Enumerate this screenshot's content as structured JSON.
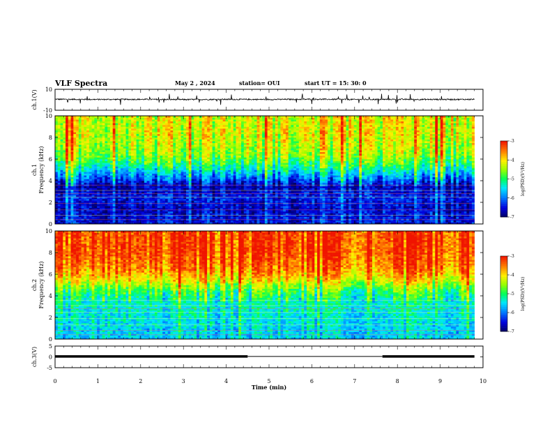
{
  "header": {
    "title": "VLF Spectra",
    "date": "May 2 , 2024",
    "station": "station= OUI",
    "start": "start UT = 15: 30: 0"
  },
  "colors": {
    "spectrogram_scale": [
      "#00008b",
      "#0000ff",
      "#00bfff",
      "#00ffff",
      "#00ff00",
      "#ffff00",
      "#ff8000",
      "#ff0000",
      "#ffffff"
    ],
    "trace": "#000000",
    "axis": "#000000"
  },
  "chart_data": [
    {
      "type": "line",
      "panel": "ch1-waveform",
      "ylabel": "ch.1(V)",
      "ylim": [
        -10,
        10
      ],
      "y_ticks": [
        "10",
        "-10"
      ],
      "x": [
        0,
        1,
        2,
        3,
        4,
        5,
        6,
        7,
        8,
        9,
        9.8
      ],
      "values": [
        0.5,
        0.3,
        0.4,
        0.2,
        0.4,
        0.3,
        0.5,
        0.3,
        0.4,
        0.3,
        0.4
      ]
    },
    {
      "type": "heatmap",
      "panel": "ch1-spectrogram",
      "ylabel": "ch.1\nFrequency (kHz)",
      "xlim": [
        0,
        10
      ],
      "ylim": [
        0,
        10
      ],
      "y_ticks": [
        "0",
        "2",
        "4",
        "6",
        "8",
        "10"
      ],
      "x_data_end": 9.8,
      "profile_freq_khz": [
        0.5,
        1.5,
        2.5,
        3.5,
        4.5,
        5.5,
        6.5,
        7.5,
        8.5,
        9.5
      ],
      "profile_log_psd": [
        -6.5,
        -6.6,
        -6.4,
        -6.7,
        -5.8,
        -5.0,
        -4.5,
        -4.3,
        -4.2,
        -4.2
      ],
      "colorbar": {
        "label": "log(PSD)(V²/Hz)",
        "range": [
          -7,
          -3
        ],
        "ticks": [
          "-3",
          "-4",
          "-5",
          "-6",
          "-7"
        ]
      }
    },
    {
      "type": "heatmap",
      "panel": "ch2-spectrogram",
      "ylabel": "ch.2\nFrequency (kHz)",
      "xlim": [
        0,
        10
      ],
      "ylim": [
        0,
        10
      ],
      "y_ticks": [
        "0",
        "2",
        "4",
        "6",
        "8",
        "10"
      ],
      "x_data_end": 9.8,
      "profile_freq_khz": [
        0.5,
        1.5,
        2.5,
        3.5,
        4.5,
        5.5,
        6.5,
        7.5,
        8.5,
        9.5
      ],
      "profile_log_psd": [
        -5.6,
        -5.5,
        -5.4,
        -5.3,
        -4.9,
        -4.1,
        -3.6,
        -3.4,
        -3.3,
        -3.3
      ],
      "colorbar": {
        "label": "log(PSD)(V²/Hz)",
        "range": [
          -7,
          -3
        ],
        "ticks": [
          "-3",
          "-4",
          "-5",
          "-6",
          "-7"
        ]
      }
    },
    {
      "type": "line",
      "panel": "ch3-waveform",
      "ylabel": "ch.3(V)",
      "ylim": [
        -5,
        5
      ],
      "y_ticks": [
        "5",
        "0",
        "-5"
      ],
      "x_label": "Time (min)",
      "x_ticks": [
        "0",
        "1",
        "2",
        "3",
        "4",
        "5",
        "6",
        "7",
        "8",
        "9",
        "10"
      ],
      "thick_segments_min": [
        [
          0,
          4.5
        ],
        [
          7.65,
          9.8
        ]
      ],
      "thin_segment_min": [
        4.5,
        7.65
      ],
      "level_v": 0.2
    }
  ]
}
